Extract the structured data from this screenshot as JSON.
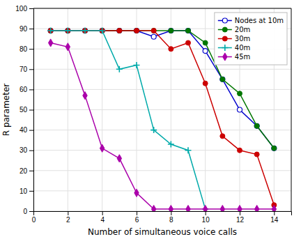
{
  "chart_data": {
    "type": "line",
    "xlabel": "Number of simultaneous voice calls",
    "ylabel": "R parameter",
    "xlim": [
      0,
      15
    ],
    "ylim": [
      0,
      100
    ],
    "xticks": [
      0,
      2,
      4,
      6,
      8,
      10,
      12,
      14
    ],
    "yticks": [
      0,
      10,
      20,
      30,
      40,
      50,
      60,
      70,
      80,
      90,
      100
    ],
    "grid": true,
    "legend": "upper right",
    "series": [
      {
        "name": "Nodes at 10m",
        "color": "#0000cc",
        "marker": "circle-open",
        "x": [
          1,
          2,
          3,
          4,
          5,
          6,
          7,
          8,
          9,
          10,
          11,
          12,
          13,
          14
        ],
        "values": [
          89,
          89,
          89,
          89,
          89,
          89,
          86,
          89,
          89,
          79,
          65,
          50,
          42,
          31
        ]
      },
      {
        "name": "20m",
        "color": "#007700",
        "marker": "circle",
        "x": [
          1,
          2,
          3,
          4,
          5,
          6,
          7,
          8,
          9,
          10,
          11,
          12,
          13,
          14
        ],
        "values": [
          89,
          89,
          89,
          89,
          89,
          89,
          89,
          89,
          89,
          83,
          65,
          58,
          42,
          31
        ]
      },
      {
        "name": "30m",
        "color": "#cc0000",
        "marker": "circle",
        "x": [
          1,
          2,
          3,
          4,
          5,
          6,
          7,
          8,
          9,
          10,
          11,
          12,
          13,
          14
        ],
        "values": [
          89,
          89,
          89,
          89,
          89,
          89,
          89,
          80,
          83,
          63,
          37,
          30,
          28,
          3
        ]
      },
      {
        "name": "40m",
        "color": "#00aaaa",
        "marker": "plus",
        "x": [
          1,
          2,
          3,
          4,
          5,
          6,
          7,
          8,
          9,
          10
        ],
        "values": [
          89,
          89,
          89,
          89,
          70,
          72,
          40,
          33,
          30,
          1
        ]
      },
      {
        "name": "45m",
        "color": "#aa00aa",
        "marker": "diamond",
        "x": [
          1,
          2,
          3,
          4,
          5,
          6,
          7,
          8,
          9,
          10,
          11,
          12,
          13,
          14
        ],
        "values": [
          83,
          81,
          57,
          31,
          26,
          9,
          1,
          1,
          1,
          1,
          1,
          1,
          1,
          1
        ]
      }
    ]
  }
}
